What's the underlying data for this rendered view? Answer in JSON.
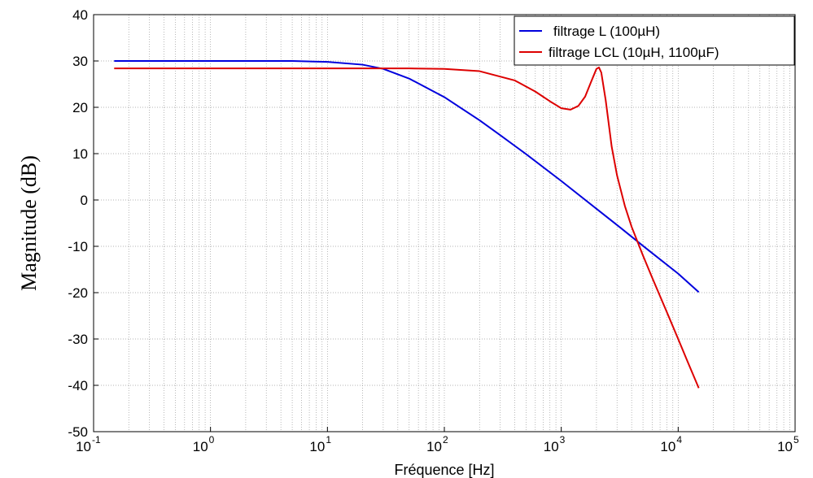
{
  "chart_data": {
    "type": "line",
    "title": "",
    "xlabel": "Fréquence [Hz]",
    "ylabel": "Magnitude (dB)",
    "xscale": "log",
    "xlim": [
      0.1,
      100000
    ],
    "ylim": [
      -50,
      40
    ],
    "grid": true,
    "legend_position": "top-right",
    "x_ticks": [
      {
        "base": "10",
        "exp": "-1"
      },
      {
        "base": "10",
        "exp": "0"
      },
      {
        "base": "10",
        "exp": "1"
      },
      {
        "base": "10",
        "exp": "2"
      },
      {
        "base": "10",
        "exp": "3"
      },
      {
        "base": "10",
        "exp": "4"
      },
      {
        "base": "10",
        "exp": "5"
      }
    ],
    "y_ticks": [
      "-50",
      "-40",
      "-30",
      "-20",
      "-10",
      "0",
      "10",
      "20",
      "30",
      "40"
    ],
    "series": [
      {
        "name": "filtrage L (100µH)",
        "color": "#0000dd",
        "x": [
          0.15,
          1,
          5,
          10,
          20,
          30,
          50,
          100,
          200,
          300,
          500,
          1000,
          2000,
          3000,
          5000,
          10000,
          15000
        ],
        "y": [
          30,
          30,
          30,
          29.8,
          29.2,
          28.3,
          26.2,
          22.2,
          17.2,
          14.0,
          9.9,
          4.1,
          -1.9,
          -5.4,
          -9.9,
          -15.9,
          -19.9
        ]
      },
      {
        "name": "filtrage LCL (10µH, 1100µF)",
        "color": "#dd0000",
        "x": [
          0.15,
          1,
          10,
          50,
          100,
          200,
          400,
          600,
          800,
          1000,
          1200,
          1400,
          1600,
          1800,
          2000,
          2100,
          2200,
          2400,
          2700,
          3000,
          3500,
          4000,
          5000,
          6000,
          8000,
          10000,
          12000,
          15000
        ],
        "y": [
          28.4,
          28.4,
          28.4,
          28.4,
          28.3,
          27.8,
          25.8,
          23.4,
          21.3,
          19.8,
          19.5,
          20.3,
          22.3,
          25.5,
          28.3,
          28.6,
          27.5,
          21.5,
          11.5,
          5.3,
          -1.3,
          -5.8,
          -12.0,
          -16.8,
          -24.2,
          -30.0,
          -34.8,
          -40.6
        ]
      }
    ]
  }
}
